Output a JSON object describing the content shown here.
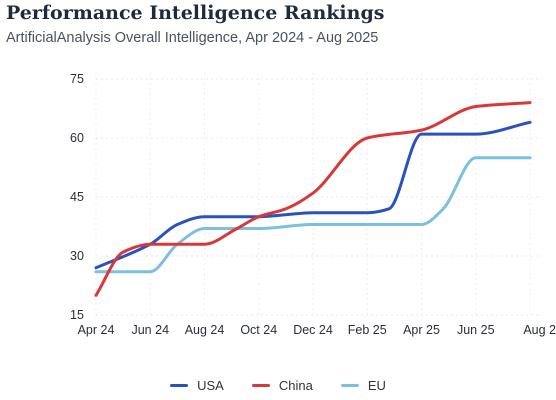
{
  "title": "Performance Intelligence Rankings",
  "subtitle": "ArtificialAnalysis Overall Intelligence, Apr 2024 - Aug 2025",
  "chart_data": {
    "type": "line",
    "title": "Performance Intelligence Rankings",
    "subtitle": "ArtificialAnalysis Overall Intelligence, Apr 2024 - Aug 2025",
    "x_ticks": [
      "Apr 24",
      "Jun 24",
      "Aug 24",
      "Oct 24",
      "Dec 24",
      "Feb 25",
      "Apr 25",
      "Jun 25",
      "Aug 2"
    ],
    "y_ticks": [
      15,
      30,
      45,
      60,
      75
    ],
    "ylim": [
      15,
      75
    ],
    "grid": "dotted",
    "legend_position": "bottom",
    "series": [
      {
        "name": "USA",
        "color": "#2a52be",
        "x": [
          0,
          1,
          1.5,
          2,
          3,
          3.5,
          4,
          5,
          5.4,
          6,
          7,
          8
        ],
        "values": [
          27,
          33,
          38,
          40,
          40,
          40.5,
          41,
          41,
          42,
          61,
          61,
          64
        ]
      },
      {
        "name": "China",
        "color": "#d9383a",
        "x": [
          0,
          0.5,
          1,
          2,
          2.6,
          3,
          3.5,
          4,
          5,
          6,
          7,
          8
        ],
        "values": [
          20,
          31,
          33,
          33,
          37,
          40,
          42,
          46,
          60,
          62,
          68,
          69
        ]
      },
      {
        "name": "EU",
        "color": "#7cbfe0",
        "x": [
          0,
          1,
          1.5,
          2,
          3,
          4,
          5,
          6,
          6.4,
          7,
          8
        ],
        "values": [
          26,
          26,
          33,
          37,
          37,
          38,
          38,
          38,
          42,
          55,
          55
        ]
      }
    ]
  }
}
